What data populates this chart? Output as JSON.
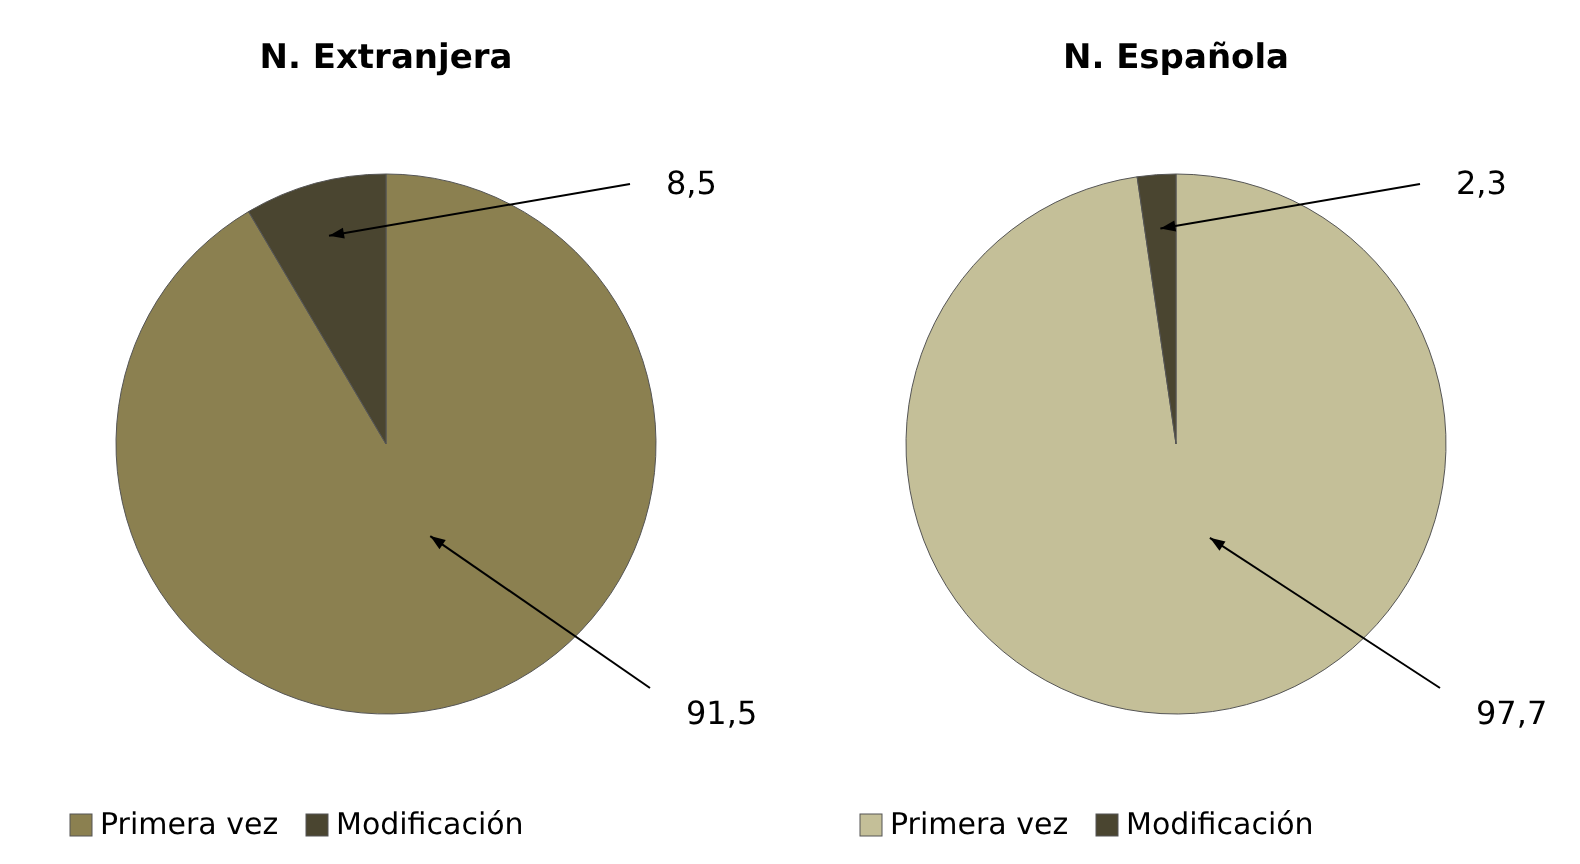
{
  "chart_data": [
    {
      "type": "pie",
      "title": "N. Extranjera",
      "categories": [
        "Primera vez",
        "Modificación"
      ],
      "values": [
        91.5,
        8.5
      ],
      "colors": [
        "#8b8050",
        "#4a4530"
      ],
      "value_labels": [
        "91,5",
        "8,5"
      ],
      "legend": "bottom"
    },
    {
      "type": "pie",
      "title": "N. Española",
      "categories": [
        "Primera vez",
        "Modificación"
      ],
      "values": [
        97.7,
        2.3
      ],
      "colors": [
        "#c4bf98",
        "#4a4530"
      ],
      "value_labels": [
        "97,7",
        "2,3"
      ],
      "legend": "bottom"
    }
  ]
}
